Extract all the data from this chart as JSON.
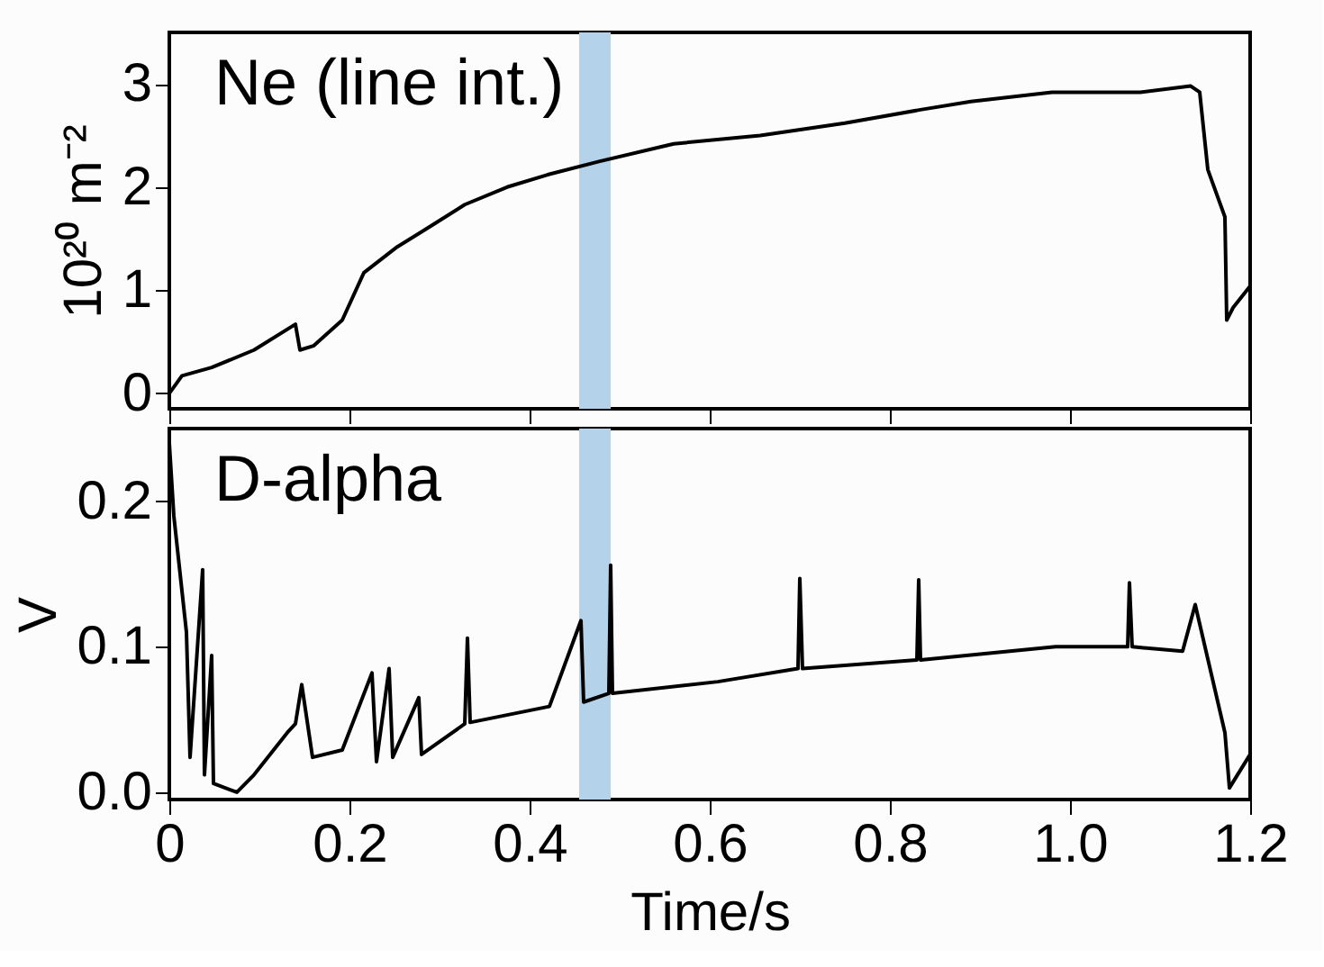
{
  "chart_data": [
    {
      "type": "line",
      "ylabel": "10²⁰ m⁻²",
      "annotations": [
        "Ne (line int.)"
      ],
      "xlim": [
        0,
        1.2
      ],
      "xticks": [
        0,
        0.2,
        0.4,
        0.6,
        0.8,
        1,
        1.2
      ],
      "ylim": [
        -0.15,
        3.5
      ],
      "yticks": [
        0,
        1,
        2,
        3
      ],
      "tick_labels": "y",
      "grid": false,
      "bands": [
        {
          "axis": "x",
          "from": 0.455,
          "to": 0.49,
          "color": "#b4d3eb"
        }
      ],
      "series": [
        {
          "color": "#000000",
          "x": [
            0,
            0.014,
            0.047,
            0.094,
            0.14,
            0.145,
            0.16,
            0.192,
            0.216,
            0.253,
            0.29,
            0.328,
            0.375,
            0.42,
            0.478,
            0.56,
            0.656,
            0.75,
            0.834,
            0.89,
            0.98,
            1.078,
            1.134,
            1.144,
            1.153,
            1.172,
            1.174,
            1.181,
            1.2
          ],
          "values": [
            0,
            0.17,
            0.25,
            0.42,
            0.67,
            0.42,
            0.46,
            0.71,
            1.17,
            1.42,
            1.62,
            1.83,
            2.0,
            2.12,
            2.25,
            2.42,
            2.5,
            2.62,
            2.75,
            2.83,
            2.92,
            2.92,
            2.98,
            2.92,
            2.17,
            1.71,
            0.71,
            0.83,
            1.04
          ]
        }
      ]
    },
    {
      "type": "line",
      "xlabel": "Time/s",
      "ylabel": "V",
      "annotations": [
        "D-alpha"
      ],
      "xlim": [
        0,
        1.2
      ],
      "xticks": [
        0,
        0.2,
        0.4,
        0.6,
        0.8,
        {
          "value": 1.0,
          "label": "1.0"
        },
        1.2
      ],
      "ylim": [
        -0.005,
        0.25
      ],
      "yticks": [
        {
          "value": 0,
          "label": "0.0"
        },
        0.1,
        0.2
      ],
      "grid": false,
      "bands": [
        {
          "axis": "x",
          "from": 0.455,
          "to": 0.49,
          "color": "#b4d3eb"
        }
      ],
      "series": [
        {
          "color": "#000000",
          "x": [
            0,
            0.005,
            0.019,
            0.023,
            0.037,
            0.039,
            0.047,
            0.049,
            0.075,
            0.094,
            0.131,
            0.14,
            0.147,
            0.159,
            0.192,
            0.225,
            0.23,
            0.244,
            0.248,
            0.277,
            0.28,
            0.328,
            0.331,
            0.334,
            0.422,
            0.457,
            0.46,
            0.488,
            0.49,
            0.492,
            0.609,
            0.698,
            0.7,
            0.703,
            0.83,
            0.832,
            0.834,
            0.984,
            1.064,
            1.066,
            1.069,
            1.125,
            1.139,
            1.172,
            1.177,
            1.2
          ],
          "values": [
            0.24,
            0.19,
            0.11,
            0.024,
            0.153,
            0.012,
            0.094,
            0.006,
            0.0,
            0.012,
            0.041,
            0.047,
            0.074,
            0.024,
            0.029,
            0.082,
            0.021,
            0.085,
            0.024,
            0.065,
            0.026,
            0.047,
            0.106,
            0.048,
            0.059,
            0.118,
            0.062,
            0.068,
            0.156,
            0.068,
            0.076,
            0.085,
            0.147,
            0.085,
            0.091,
            0.146,
            0.091,
            0.1,
            0.1,
            0.144,
            0.1,
            0.097,
            0.129,
            0.041,
            0.003,
            0.026
          ]
        }
      ]
    }
  ]
}
